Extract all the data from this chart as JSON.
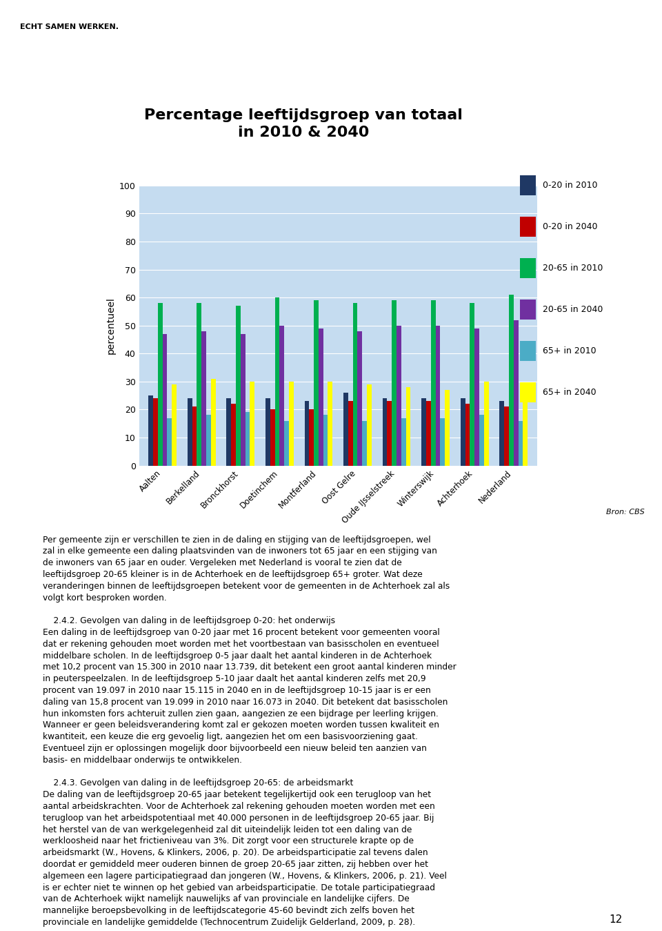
{
  "title": "Percentage leeftijdsgroep van totaal\nin 2010 & 2040",
  "ylabel": "percentueel",
  "categories": [
    "Aalten",
    "Berkelland",
    "Bronckhorst",
    "Doetinchem",
    "Montferland",
    "Oost Gelre",
    "Oude IJsselstreek",
    "Winterswijk",
    "Achterhoek",
    "Nederland"
  ],
  "series": {
    "0-20 in 2010": [
      25,
      24,
      24,
      24,
      23,
      26,
      24,
      24,
      24,
      23
    ],
    "0-20 in 2040": [
      24,
      21,
      22,
      20,
      20,
      23,
      23,
      23,
      22,
      21
    ],
    "20-65 in 2010": [
      58,
      58,
      57,
      60,
      59,
      58,
      59,
      59,
      58,
      61
    ],
    "20-65 in 2040": [
      47,
      48,
      47,
      50,
      49,
      48,
      50,
      50,
      49,
      52
    ],
    "65+ in 2010": [
      17,
      18,
      19,
      16,
      18,
      16,
      17,
      17,
      18,
      16
    ],
    "65+ in 2040": [
      29,
      31,
      30,
      30,
      30,
      29,
      28,
      27,
      30,
      25
    ]
  },
  "colors": {
    "0-20 in 2010": "#1F3864",
    "0-20 in 2040": "#C00000",
    "20-65 in 2010": "#00B050",
    "20-65 in 2040": "#7030A0",
    "65+ in 2010": "#4BACC6",
    "65+ in 2040": "#FFFF00"
  },
  "ylim": [
    0,
    100
  ],
  "yticks": [
    0,
    10,
    20,
    30,
    40,
    50,
    60,
    70,
    80,
    90,
    100
  ],
  "chart_bg": "#C5DCF0",
  "source_text": "Bron: CBS",
  "figure_bg": "#FFFFFF",
  "header_text": "ECHT SAMEN WERKEN.",
  "body_para1": "Per gemeente zijn er verschillen te zien in de daling en stijging van de leeftijdsgroepen, wel zal in elke gemeente een daling plaatsvinden van de inwoners tot 65 jaar en een stijging van de inwoners van 65 jaar en ouder. Vergeleken met Nederland is vooral te zien dat de leeftijdsgroep 20-65 kleiner is in de Achterhoek en de leeftijdsgroep 65+ groter. Wat deze veranderingen binnen de leeftijdsgroepen betekent voor de gemeenten in de Achterhoek zal als volgt kort besproken worden.",
  "body_section1_title": "2.4.2. Gevolgen van daling in de leeftijdsgroep 0-20: het onderwijs",
  "body_section1": "Een daling in de leeftijdsgroep van 0-20 jaar met 16 procent betekent voor gemeenten vooral dat er rekening gehouden moet worden met het voortbestaan van basisscholen en eventueel middelbare scholen. In de leeftijdsgroep 0-5 jaar daalt het aantal kinderen in de Achterhoek met 10,2 procent van 15.300 in 2010 naar 13.739, dit betekent een groot aantal kinderen minder in peuterspeelzalen. In de leeftijdsgroep 5-10 jaar daalt het aantal kinderen zelfs met 20,9 procent van 19.097 in 2010 naar 15.115 in 2040 en in de leeftijdsgroep 10-15 jaar is er een daling van 15,8 procent van 19.099 in 2010 naar 16.073 in 2040. Dit betekent dat basisscholen hun inkomsten fors achteruit zullen zien gaan, aangezien ze een bijdrage per leerling krijgen. Wanneer er geen beleidsverandering komt zal er gekozen moeten worden tussen kwaliteit en kwantiteit, een keuze die erg gevoelig ligt, aangezien het om een basisvoorziening gaat. Eventueel zijn er oplossingen mogelijk door bijvoorbeeld een nieuw beleid ten aanzien van basis- en middelbaar onderwijs te ontwikkelen.",
  "body_section2_title": "2.4.3. Gevolgen van daling in de leeftijdsgroep 20-65: de arbeidsmarkt",
  "body_section2": "De daling van de leeftijdsgroep 20-65 jaar betekent tegelijkertijd ook een terugloop van het aantal arbeidskrachten. Voor de Achterhoek zal rekening gehouden moeten worden met een terugloop van het arbeidspotentiaal met 40.000 personen in de leeftijdsgroep 20-65 jaar. Bij het herstel van de van werkgelegenheid zal dit uiteindelijk leiden tot een daling van de werkloosheid naar het frictieniveau van 3%. Dit zorgt voor een structurele krapte op de arbeidsmarkt (W., Hovens, & Klinkers, 2006, p. 20). De arbeidsparticipatie zal tevens dalen doordat er gemiddeld meer ouderen binnen de groep 20-65 jaar zitten, zij hebben over het algemeen een lagere participatiegraad dan jongeren (W., Hovens, & Klinkers, 2006, p. 21). Veel is er echter niet te winnen op het gebied van arbeidsparticipatie. De totale participatiegraad van de Achterhoek wijkt namelijk nauwelijks af van provinciale en landelijke cijfers. De mannelijke beroepsbevolking in de leeftijdscategorie 45-60 bevindt zich zelfs boven het provinciale en landelijke gemiddelde (Technocentrum Zuidelijk Gelderland, 2009, p. 28).",
  "page_number": "12"
}
